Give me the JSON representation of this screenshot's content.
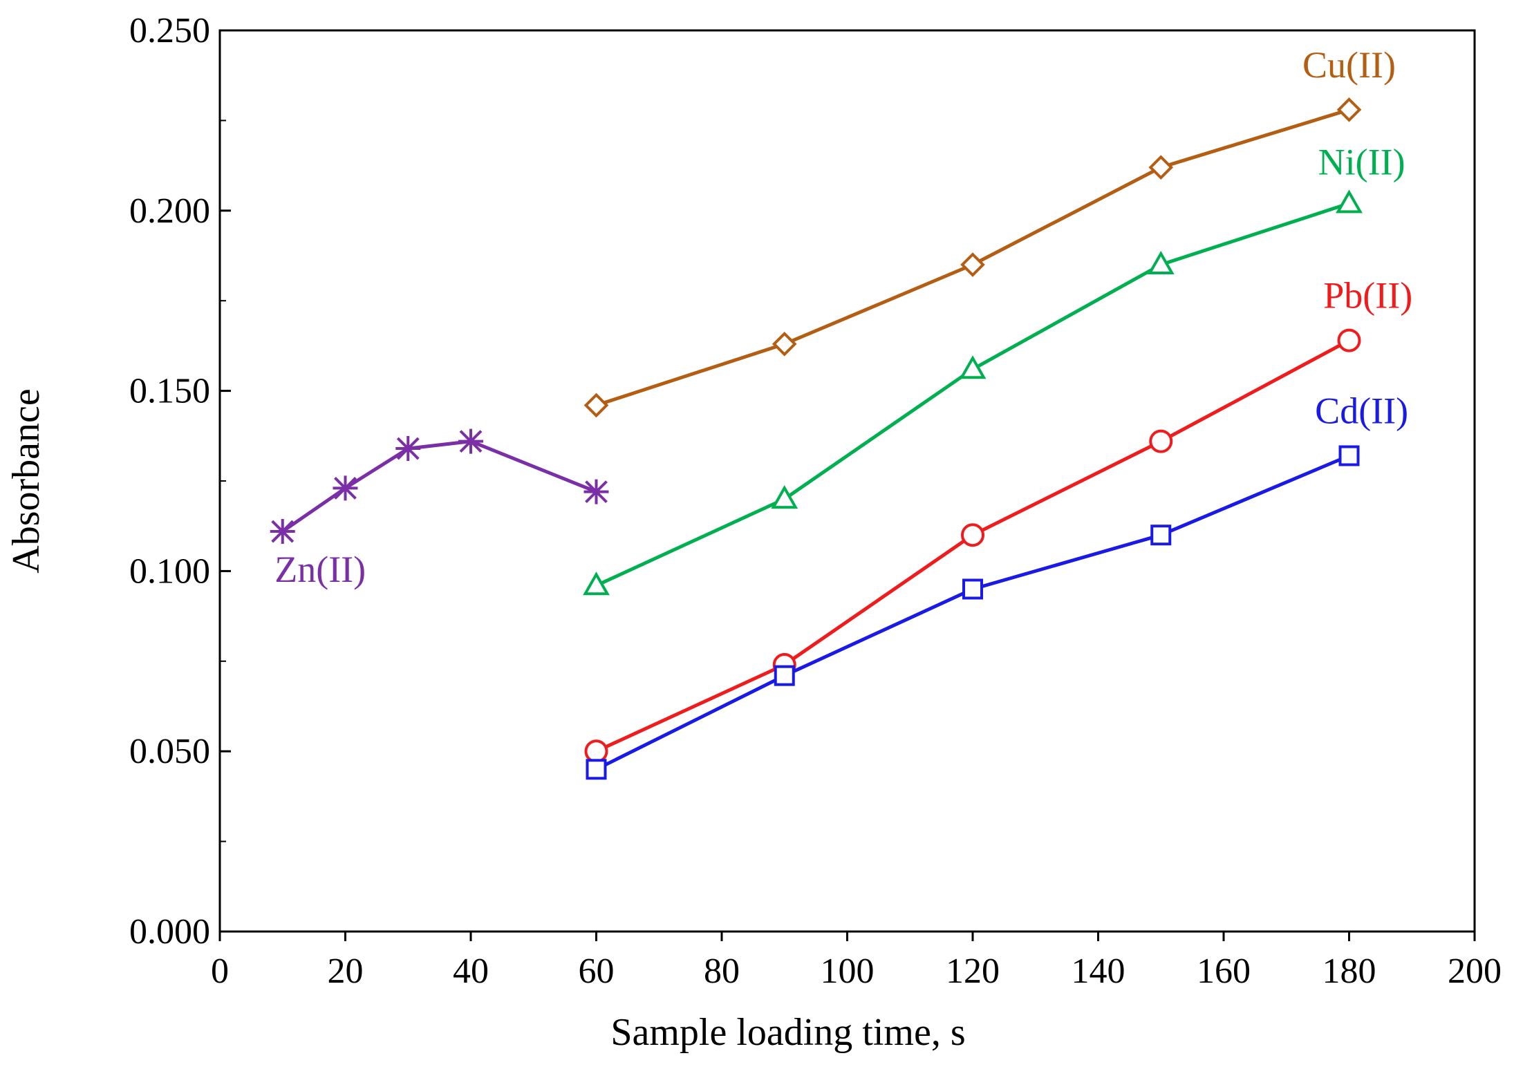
{
  "chart_data": {
    "type": "line",
    "title": "",
    "xlabel": "Sample loading time, s",
    "ylabel": "Absorbance",
    "xlim": [
      0,
      200
    ],
    "ylim": [
      0,
      0.25
    ],
    "x_ticks": [
      0,
      20,
      40,
      60,
      80,
      100,
      120,
      140,
      160,
      180,
      200
    ],
    "x_tick_labels": [
      "0",
      "20",
      "40",
      "60",
      "80",
      "100",
      "120",
      "140",
      "160",
      "180",
      "200"
    ],
    "y_ticks": [
      0,
      0.05,
      0.1,
      0.15,
      0.2,
      0.25
    ],
    "y_tick_labels": [
      "0.000",
      "0.050",
      "0.100",
      "0.150",
      "0.200",
      "0.250"
    ],
    "y_minor_step": 0.025,
    "grid": false,
    "series": [
      {
        "name": "Cu(II)",
        "label": "Cu(II)",
        "color": "#b35e12",
        "marker": "diamond",
        "x": [
          60,
          90,
          120,
          150,
          180
        ],
        "y": [
          0.146,
          0.163,
          0.185,
          0.212,
          0.228
        ],
        "label_anchor": [
          180,
          0.237
        ]
      },
      {
        "name": "Ni(II)",
        "label": "Ni(II)",
        "color": "#00b050",
        "marker": "triangle",
        "x": [
          60,
          90,
          120,
          150,
          180
        ],
        "y": [
          0.096,
          0.12,
          0.156,
          0.185,
          0.202
        ],
        "label_anchor": [
          182,
          0.21
        ]
      },
      {
        "name": "Pb(II)",
        "label": "Pb(II)",
        "color": "#ee1c1c",
        "marker": "circle",
        "x": [
          60,
          90,
          120,
          150,
          180
        ],
        "y": [
          0.05,
          0.074,
          0.11,
          0.136,
          0.164
        ],
        "label_anchor": [
          183,
          0.173
        ]
      },
      {
        "name": "Cd(II)",
        "label": "Cd(II)",
        "color": "#1a1ae6",
        "marker": "square",
        "x": [
          60,
          90,
          120,
          150,
          180
        ],
        "y": [
          0.045,
          0.071,
          0.095,
          0.11,
          0.132
        ],
        "label_anchor": [
          182,
          0.141
        ]
      },
      {
        "name": "Zn(II)",
        "label": "Zn(II)",
        "color": "#7b2fa6",
        "marker": "star",
        "x": [
          10,
          20,
          30,
          40,
          60
        ],
        "y": [
          0.111,
          0.123,
          0.134,
          0.136,
          0.122
        ],
        "label_anchor": [
          16,
          0.097
        ]
      }
    ]
  }
}
